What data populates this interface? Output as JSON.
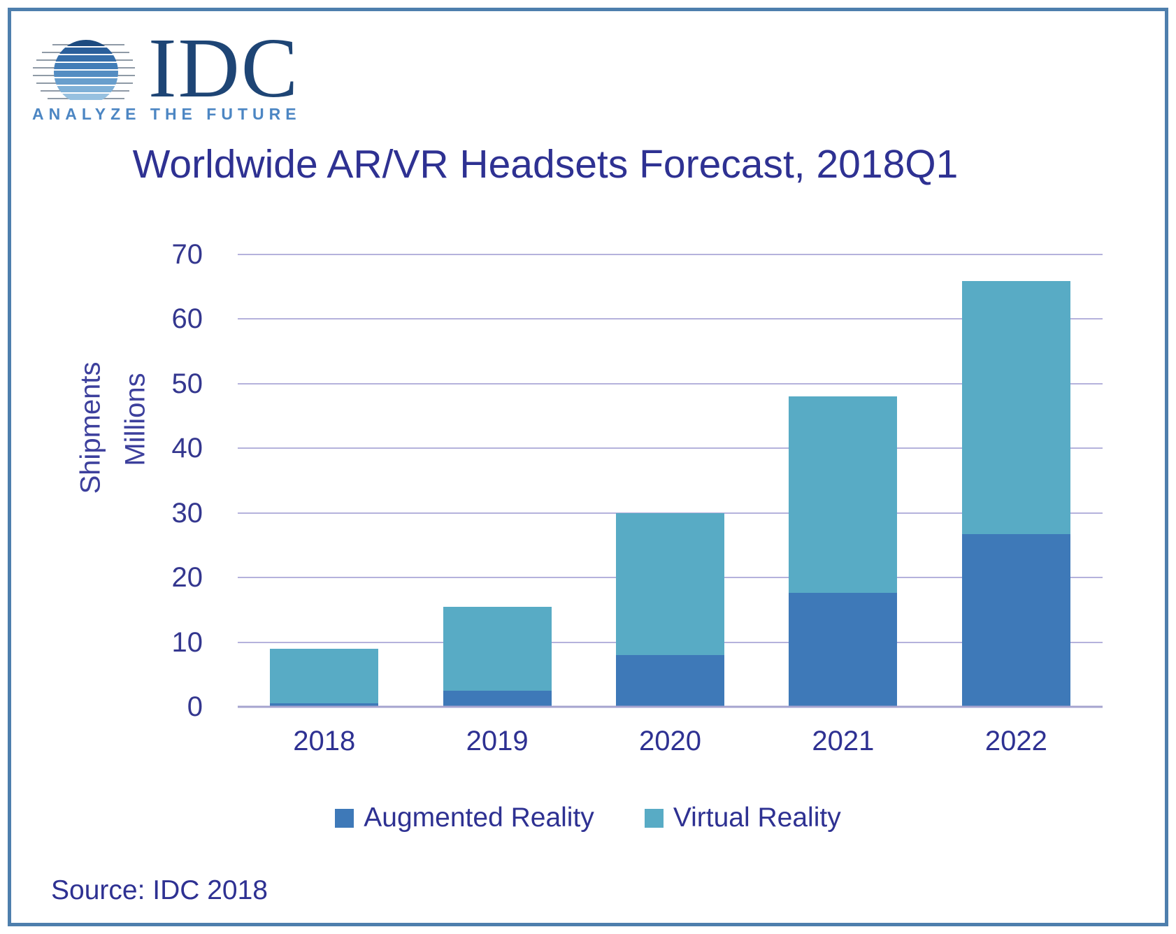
{
  "logo": {
    "brand": "IDC",
    "tagline": "ANALYZE THE FUTURE"
  },
  "title": "Worldwide AR/VR Headsets Forecast, 2018Q1",
  "source": "Source: IDC 2018",
  "y_axis_label": {
    "line1": "Shipments",
    "line2": "Millions"
  },
  "colors": {
    "augmented_reality": "#3e79b8",
    "virtual_reality": "#58abc5",
    "gridline": "#b5b2dc",
    "axis_line": "#a6a4cf",
    "title_text": "#2e3192",
    "tick_text": "#34378f",
    "frame_border": "#4e7fad",
    "logo_navy": "#1e4575",
    "logo_tagline_blue": "#4c86c3"
  },
  "chart_data": {
    "type": "bar",
    "stacked": true,
    "title": "Worldwide AR/VR Headsets Forecast, 2018Q1",
    "categories": [
      "2018",
      "2019",
      "2020",
      "2021",
      "2022"
    ],
    "series": [
      {
        "name": "Augmented Reality",
        "color": "#3e79b8",
        "values": [
          0.5,
          2.5,
          8.0,
          17.6,
          26.7
        ]
      },
      {
        "name": "Virtual Reality",
        "color": "#58abc5",
        "values": [
          8.5,
          13.0,
          22.0,
          30.4,
          39.2
        ]
      }
    ],
    "stacked_totals": [
      9.0,
      15.5,
      30.0,
      48.0,
      65.9
    ],
    "xlabel": "",
    "ylabel": "Shipments Millions",
    "ylim": [
      0,
      70
    ],
    "ytick_step": 10,
    "grid": "horizontal",
    "legend_position": "bottom"
  }
}
